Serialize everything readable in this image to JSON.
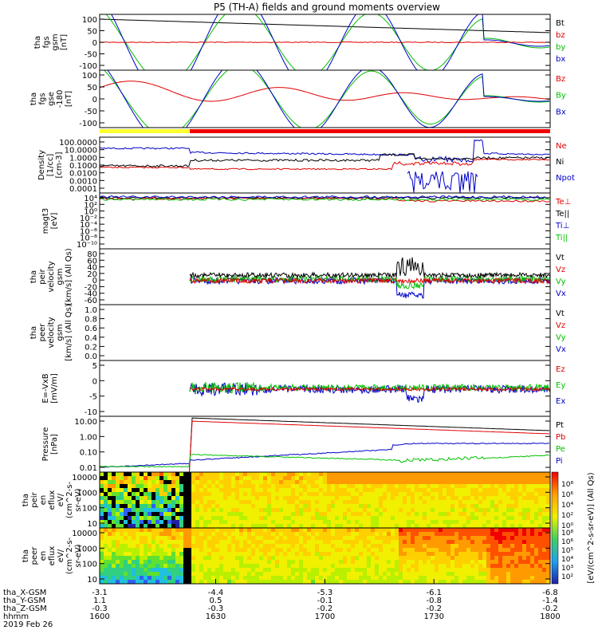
{
  "title": "P5 (TH-A) fields and ground moments overview",
  "colors": {
    "black": "#000000",
    "red": "#e00000",
    "green": "#00c000",
    "blue": "#0000c8"
  },
  "status_bar": {
    "split_x": 0.2,
    "left_color": "#ffff30",
    "right_color": "#f00000"
  },
  "chart_data": [
    {
      "type": "line",
      "ylabel": [
        "tha",
        "fgs",
        "gsm",
        "[nT]"
      ],
      "yticks": [
        "100",
        "50",
        "0",
        "-50",
        "-100"
      ],
      "ylim": [
        -100,
        100
      ],
      "legend": [
        {
          "label": "Bt",
          "color": "#000000"
        },
        {
          "label": "bz",
          "color": "#e00000"
        },
        {
          "label": "by",
          "color": "#00c000"
        },
        {
          "label": "bx",
          "color": "#0000c8"
        }
      ]
    },
    {
      "type": "line",
      "ylabel": [
        "tha",
        "fgs",
        "gse",
        "-180",
        "[nT]"
      ],
      "yticks": [
        "100",
        "50",
        "0",
        "-50",
        "-100"
      ],
      "ylim": [
        -120,
        120
      ],
      "legend": [
        {
          "label": "Bz",
          "color": "#e00000"
        },
        {
          "label": "By",
          "color": "#00c000"
        },
        {
          "label": "Bx",
          "color": "#0000c8"
        }
      ]
    },
    {
      "type": "line",
      "ylabel": [
        "Density",
        "[1/cc]",
        "[cm-3]"
      ],
      "yticks": [
        "100.0000",
        "10.0000",
        "1.0000",
        "0.1000",
        "0.0100",
        "0.0010",
        "0.0001"
      ],
      "log": true,
      "legend": [
        {
          "label": "Ne",
          "color": "#e00000"
        },
        {
          "label": "Ni",
          "color": "#000000"
        },
        {
          "label": "Npot",
          "color": "#0000c8"
        }
      ]
    },
    {
      "type": "line",
      "ylabel": [
        "magt3",
        "[eV]"
      ],
      "yticks": [
        "10⁴",
        "10²",
        "10⁰",
        "10⁻²",
        "10⁻⁴",
        "10⁻⁶",
        "10⁻⁸",
        "10⁻¹⁰"
      ],
      "log": true,
      "legend": [
        {
          "label": "Te⊥",
          "color": "#e00000"
        },
        {
          "label": "Te||",
          "color": "#000000"
        },
        {
          "label": "Ti⊥",
          "color": "#0000c8"
        },
        {
          "label": "Ti||",
          "color": "#00c000"
        }
      ]
    },
    {
      "type": "line",
      "ylabel": [
        "tha",
        "peir",
        "velocity",
        "gsm",
        "[km/s] (All Qs)"
      ],
      "yticks": [
        "80",
        "60",
        "40",
        "20",
        "0",
        "-20",
        "-40",
        "-60"
      ],
      "ylim": [
        -60,
        80
      ],
      "legend": [
        {
          "label": "Vt",
          "color": "#000000"
        },
        {
          "label": "Vz",
          "color": "#e00000"
        },
        {
          "label": "Vy",
          "color": "#00c000"
        },
        {
          "label": "Vx",
          "color": "#0000c8"
        }
      ]
    },
    {
      "type": "line",
      "ylabel": [
        "tha",
        "peer",
        "velocity",
        "gsm",
        "[km/s] (All Qs)"
      ],
      "yticks": [
        "1.0",
        "0.8",
        "0.6",
        "0.4",
        "0.2",
        "0.0"
      ],
      "ylim": [
        0,
        1
      ],
      "legend": [
        {
          "label": "Vt",
          "color": "#000000"
        },
        {
          "label": "Vz",
          "color": "#e00000"
        },
        {
          "label": "Vy",
          "color": "#00c000"
        },
        {
          "label": "Vx",
          "color": "#0000c8"
        }
      ]
    },
    {
      "type": "line",
      "ylabel": [
        "E=-VxB",
        "[mV/m]"
      ],
      "yticks": [
        "5",
        "0",
        "-5",
        "-10"
      ],
      "ylim": [
        -12,
        8
      ],
      "legend": [
        {
          "label": "Ez",
          "color": "#e00000"
        },
        {
          "label": "Ey",
          "color": "#00c000"
        },
        {
          "label": "Ex",
          "color": "#0000c8"
        }
      ]
    },
    {
      "type": "line",
      "ylabel": [
        "Pressure",
        "[nPa]"
      ],
      "yticks": [
        "10.00",
        "1.00",
        "0.10",
        "0.01"
      ],
      "log": true,
      "legend": [
        {
          "label": "Pt",
          "color": "#000000"
        },
        {
          "label": "Pb",
          "color": "#e00000"
        },
        {
          "label": "Pe",
          "color": "#00c000"
        },
        {
          "label": "Pi",
          "color": "#0000c8"
        }
      ]
    },
    {
      "type": "heatmap",
      "ylabel": [
        "tha",
        "peir",
        "en",
        "eflux",
        "eV/",
        "(cm^2-s-",
        "sr-eV)"
      ],
      "yticks": [
        "10000",
        "1000",
        "100",
        "10"
      ],
      "log": true
    },
    {
      "type": "heatmap",
      "ylabel": [
        "tha",
        "peer",
        "en",
        "eflux",
        "eV/",
        "(cm^2-s-",
        "sr-eV)"
      ],
      "yticks": [
        "10000",
        "1000",
        "100",
        "10"
      ],
      "log": true
    }
  ],
  "colorbar": {
    "label": "[eV/(cm^2-s-sr-eV)] (All Qs)",
    "ticks_top": [
      "10⁸",
      "10⁶",
      "10⁴",
      "10²",
      "10⁰"
    ],
    "ticks_bottom": [
      "10⁸",
      "10⁶",
      "10⁵",
      "10⁴",
      "10³",
      "10²"
    ]
  },
  "xaxis": {
    "rows": [
      {
        "label": "tha_X-GSM",
        "values": [
          "-3.1",
          "-4.4",
          "-5.3",
          "-6.1",
          "-6.8"
        ]
      },
      {
        "label": "tha_Y-GSM",
        "values": [
          "1.1",
          "0.5",
          "-0.1",
          "-0.8",
          "-1.4"
        ]
      },
      {
        "label": "tha_Z-GSM",
        "values": [
          "-0.3",
          "-0.3",
          "-0.2",
          "-0.2",
          "-0.2"
        ]
      },
      {
        "label": "hhmm",
        "values": [
          "1600",
          "1630",
          "1700",
          "1730",
          "1800"
        ]
      }
    ],
    "date": "2019 Feb 26"
  }
}
